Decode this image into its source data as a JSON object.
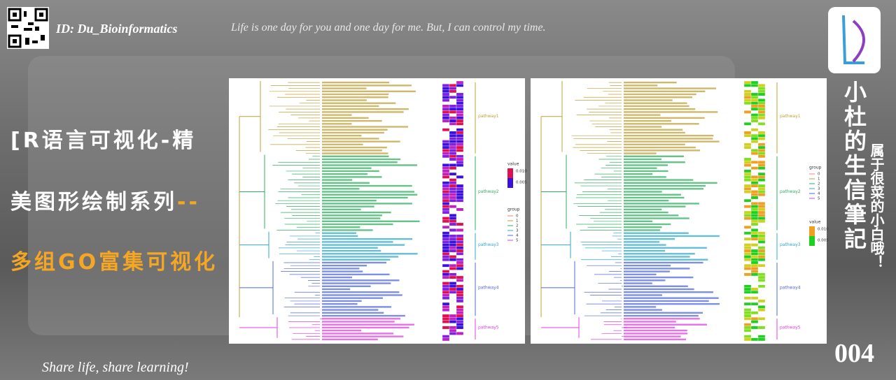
{
  "header": {
    "id": "ID: Du_Bioinformatics",
    "motto": "Life is one day for you and one day for me. But, I can control my time."
  },
  "title": {
    "lines": [
      "[R语言可视化-精",
      "美图形绘制系列"
    ],
    "dash": "--",
    "subtitle": "多组GO富集可视化"
  },
  "brand": {
    "name": "小杜的生信筆記",
    "tagline": "属于很菜的小白哦！",
    "issue": "004"
  },
  "footer": "Share life, share learning!",
  "panels": [
    {
      "pathways": [
        "pathway1",
        "pathway2",
        "pathway3",
        "pathway4",
        "pathway5"
      ],
      "value_legend": {
        "title": "value",
        "labels": [
          "0.010",
          "0.005"
        ]
      },
      "group_legend": {
        "title": "group",
        "labels": [
          "0",
          "1",
          "2",
          "3",
          "4",
          "5"
        ]
      }
    },
    {
      "pathways": [
        "pathway1",
        "pathway2",
        "pathway3",
        "pathway4",
        "pathway5"
      ],
      "group_legend": {
        "title": "group",
        "labels": [
          "0",
          "1",
          "2",
          "3",
          "4",
          "5"
        ]
      },
      "value_legend": {
        "title": "value",
        "labels": [
          "0.010",
          "0.005"
        ]
      }
    }
  ]
}
